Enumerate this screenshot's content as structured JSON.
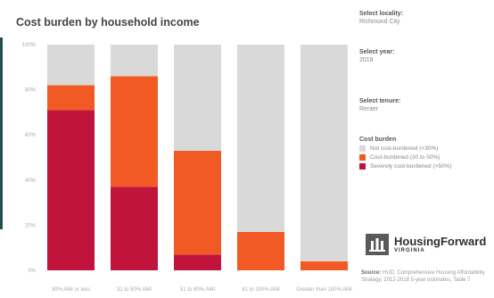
{
  "chart_data": {
    "type": "bar",
    "stacked": true,
    "title": "Cost burden by household income",
    "categories": [
      "30% AMI or less",
      "31 to 50% AMI",
      "51 to 80% AMI",
      "81 to 100% AMI",
      "Greater than 100% AMI"
    ],
    "ylim": [
      0,
      100
    ],
    "yticks": [
      "0%",
      "20%",
      "40%",
      "60%",
      "80%",
      "100%"
    ],
    "grid": false,
    "series": [
      {
        "name": "Severely cost-burdened (>50%)",
        "values": [
          71,
          37,
          7,
          0,
          0
        ],
        "color": "#c0143c"
      },
      {
        "name": "Cost-burdened (30 to 50%)",
        "values": [
          11,
          49,
          46,
          17,
          4
        ],
        "color": "#f15a24"
      },
      {
        "name": "Not cost-burdened (<30%)",
        "values": [
          18,
          14,
          47,
          83,
          96
        ],
        "color": "#d9d9d9"
      }
    ]
  },
  "controls": {
    "locality": {
      "label": "Select locality:",
      "value": "Richmond City"
    },
    "year": {
      "label": "Select year:",
      "value": "2018"
    },
    "tenure": {
      "label": "Select tenure:",
      "value": "Renter"
    }
  },
  "legend": {
    "title": "Cost burden",
    "items": [
      {
        "label": "Not cost-burdened (<30%)",
        "color": "#d9d9d9"
      },
      {
        "label": "Cost-burdened (30 to 50%)",
        "color": "#f15a24"
      },
      {
        "label": "Severely cost-burdened (>50%)",
        "color": "#c0143c"
      }
    ]
  },
  "logo": {
    "main": "HousingForward",
    "sub": "VIRGINIA"
  },
  "source": {
    "label": "Source:",
    "text": "HUD, Comprehensive Housing Affordability Strategy, 2012-2018 5-year estimates, Table 7"
  }
}
